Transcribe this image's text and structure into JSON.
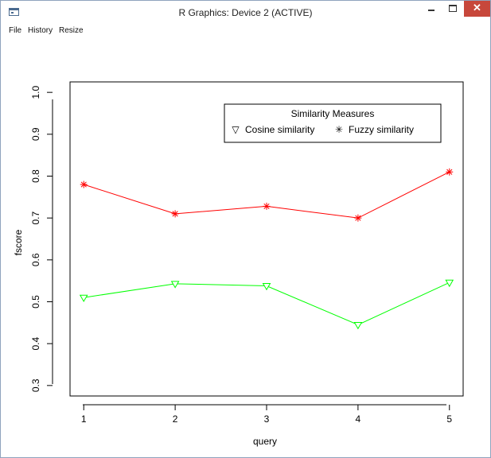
{
  "window": {
    "title": "R Graphics: Device 2 (ACTIVE)",
    "close_glyph": "✕"
  },
  "menu": [
    "File",
    "History",
    "Resize"
  ],
  "legend": {
    "title": "Similarity Measures",
    "items": [
      {
        "label": "Cosine similarity",
        "symbol": "▽",
        "color": "#000000"
      },
      {
        "label": "Fuzzy similarity",
        "symbol": "✳",
        "color": "#000000"
      }
    ]
  },
  "chart_data": {
    "type": "line",
    "xlabel": "query",
    "ylabel": "fscore",
    "x": [
      1,
      2,
      3,
      4,
      5
    ],
    "xlim": [
      0.85,
      5.15
    ],
    "ylim": [
      0.275,
      1.025
    ],
    "yticks": [
      0.3,
      0.4,
      0.5,
      0.6,
      0.7,
      0.8,
      0.9,
      1.0
    ],
    "ytick_labels": [
      "0.3",
      "0.4",
      "0.5",
      "0.6",
      "0.7",
      "0.8",
      "0.9",
      "1.0"
    ],
    "xtick_labels": [
      "1",
      "2",
      "3",
      "4",
      "5"
    ],
    "series": [
      {
        "name": "Fuzzy similarity",
        "color": "#ff0000",
        "marker": "asterisk",
        "values": [
          0.78,
          0.71,
          0.728,
          0.7,
          0.81
        ]
      },
      {
        "name": "Cosine similarity",
        "color": "#00ff00",
        "marker": "triangle-down",
        "values": [
          0.51,
          0.543,
          0.538,
          0.445,
          0.546
        ]
      }
    ]
  }
}
